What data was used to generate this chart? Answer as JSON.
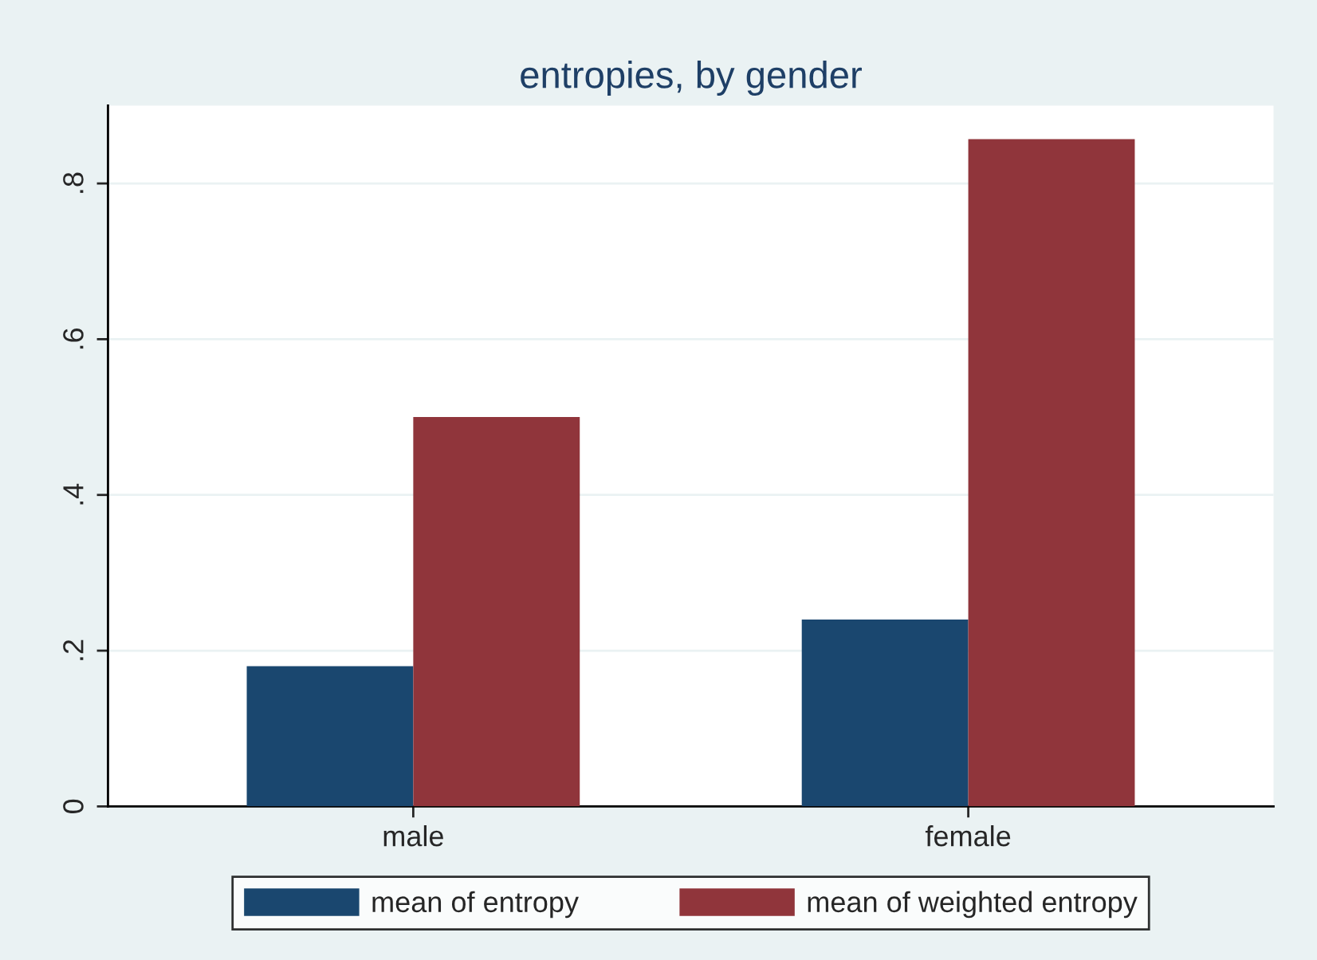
{
  "chart_data": {
    "type": "bar",
    "title": "entropies, by gender",
    "categories": [
      "male",
      "female"
    ],
    "series": [
      {
        "name": "mean of entropy",
        "color": "#1a476f",
        "values": [
          0.18,
          0.24
        ]
      },
      {
        "name": "mean of weighted entropy",
        "color": "#90353b",
        "values": [
          0.5,
          0.857
        ]
      }
    ],
    "ylim": [
      0,
      0.9
    ],
    "yticks": [
      0,
      {
        "value": 0.2,
        "label": ".2"
      },
      {
        "value": 0.4,
        "label": ".4"
      },
      {
        "value": 0.6,
        "label": ".6"
      },
      {
        "value": 0.8,
        "label": ".8"
      }
    ],
    "grid": "y",
    "legend": "bottom"
  }
}
